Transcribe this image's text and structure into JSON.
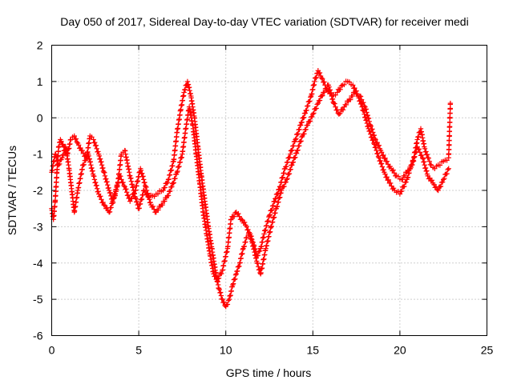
{
  "chart_data": {
    "type": "scatter",
    "title": "Day 050 of 2017, Sidereal Day-to-day VTEC variation (SDTVAR) for receiver medi",
    "xlabel": "GPS time / hours",
    "ylabel": "SDTVAR / TECUs",
    "xlim": [
      0,
      25
    ],
    "ylim": [
      -6,
      2
    ],
    "xticks": [
      "0",
      "5",
      "10",
      "15",
      "20",
      "25"
    ],
    "yticks": [
      "-6",
      "-5",
      "-4",
      "-3",
      "-2",
      "-1",
      "0",
      "1",
      "2"
    ],
    "grid": true,
    "marker": "+",
    "marker_color": "#ff0000",
    "series": [
      {
        "values": [
          [
            0.0,
            -2.5
          ],
          [
            0.1,
            -2.8
          ],
          [
            0.2,
            -2.3
          ],
          [
            0.3,
            -1.5
          ],
          [
            0.4,
            -0.8
          ],
          [
            0.5,
            -0.6
          ],
          [
            0.7,
            -0.8
          ],
          [
            0.9,
            -1.0
          ],
          [
            1.1,
            -0.6
          ],
          [
            1.3,
            -0.5
          ],
          [
            1.5,
            -0.7
          ],
          [
            1.7,
            -0.9
          ],
          [
            2.0,
            -1.1
          ],
          [
            2.2,
            -0.5
          ],
          [
            2.4,
            -0.6
          ],
          [
            2.7,
            -1.0
          ],
          [
            3.0,
            -1.5
          ],
          [
            3.3,
            -2.0
          ],
          [
            3.5,
            -2.3
          ],
          [
            3.8,
            -1.8
          ],
          [
            4.0,
            -1.0
          ],
          [
            4.2,
            -0.9
          ],
          [
            4.5,
            -1.6
          ],
          [
            4.8,
            -2.2
          ],
          [
            5.0,
            -2.5
          ],
          [
            5.3,
            -2.0
          ],
          [
            5.6,
            -2.2
          ],
          [
            6.0,
            -2.1
          ],
          [
            6.4,
            -2.0
          ],
          [
            6.7,
            -1.7
          ],
          [
            7.0,
            -1.2
          ],
          [
            7.2,
            -0.4
          ],
          [
            7.4,
            0.2
          ],
          [
            7.6,
            0.7
          ],
          [
            7.8,
            1.0
          ],
          [
            8.0,
            0.6
          ],
          [
            8.2,
            0.0
          ],
          [
            8.4,
            -0.8
          ],
          [
            8.6,
            -1.6
          ],
          [
            8.8,
            -2.3
          ],
          [
            9.0,
            -3.0
          ],
          [
            9.2,
            -3.6
          ],
          [
            9.4,
            -4.2
          ],
          [
            9.6,
            -4.7
          ],
          [
            9.8,
            -5.0
          ],
          [
            10.0,
            -5.2
          ],
          [
            10.2,
            -5.0
          ],
          [
            10.4,
            -4.6
          ],
          [
            10.6,
            -4.3
          ],
          [
            10.8,
            -4.0
          ],
          [
            11.0,
            -3.6
          ],
          [
            11.2,
            -3.3
          ],
          [
            11.4,
            -3.2
          ],
          [
            11.6,
            -3.5
          ],
          [
            11.8,
            -3.8
          ],
          [
            12.0,
            -3.6
          ],
          [
            12.2,
            -3.2
          ],
          [
            12.5,
            -2.7
          ],
          [
            12.8,
            -2.3
          ],
          [
            13.1,
            -1.9
          ],
          [
            13.4,
            -1.4
          ],
          [
            13.7,
            -1.0
          ],
          [
            14.0,
            -0.6
          ],
          [
            14.3,
            -0.2
          ],
          [
            14.6,
            0.2
          ],
          [
            14.9,
            0.6
          ],
          [
            15.1,
            1.0
          ],
          [
            15.3,
            1.3
          ],
          [
            15.5,
            1.1
          ],
          [
            15.8,
            0.8
          ],
          [
            16.1,
            0.6
          ],
          [
            16.4,
            0.7
          ],
          [
            16.7,
            0.9
          ],
          [
            17.0,
            1.0
          ],
          [
            17.3,
            0.9
          ],
          [
            17.6,
            0.6
          ],
          [
            17.9,
            0.2
          ],
          [
            18.2,
            -0.3
          ],
          [
            18.5,
            -0.7
          ],
          [
            18.8,
            -1.1
          ],
          [
            19.1,
            -1.5
          ],
          [
            19.4,
            -1.8
          ],
          [
            19.7,
            -2.0
          ],
          [
            20.0,
            -2.1
          ],
          [
            20.2,
            -1.9
          ],
          [
            20.4,
            -1.7
          ],
          [
            20.6,
            -1.4
          ],
          [
            20.8,
            -1.1
          ],
          [
            21.0,
            -0.6
          ],
          [
            21.2,
            -0.3
          ],
          [
            21.4,
            -0.8
          ],
          [
            21.6,
            -1.1
          ],
          [
            21.8,
            -1.3
          ],
          [
            22.0,
            -1.4
          ],
          [
            22.2,
            -1.3
          ],
          [
            22.5,
            -1.2
          ],
          [
            22.8,
            -1.1
          ],
          [
            22.9,
            0.4
          ]
        ]
      },
      {
        "values": [
          [
            0.0,
            -1.5
          ],
          [
            0.2,
            -1.0
          ],
          [
            0.4,
            -1.3
          ],
          [
            0.6,
            -1.1
          ],
          [
            0.8,
            -0.8
          ],
          [
            1.0,
            -1.4
          ],
          [
            1.2,
            -2.2
          ],
          [
            1.3,
            -2.6
          ],
          [
            1.5,
            -2.0
          ],
          [
            1.8,
            -1.3
          ],
          [
            2.1,
            -1.0
          ],
          [
            2.4,
            -1.6
          ],
          [
            2.7,
            -2.1
          ],
          [
            3.0,
            -2.4
          ],
          [
            3.3,
            -2.6
          ],
          [
            3.6,
            -2.2
          ],
          [
            3.9,
            -1.6
          ],
          [
            4.2,
            -1.9
          ],
          [
            4.5,
            -2.3
          ],
          [
            4.8,
            -2.0
          ],
          [
            5.1,
            -1.4
          ],
          [
            5.4,
            -1.9
          ],
          [
            5.7,
            -2.4
          ],
          [
            6.0,
            -2.6
          ],
          [
            6.3,
            -2.4
          ],
          [
            6.6,
            -2.2
          ],
          [
            6.9,
            -1.9
          ],
          [
            7.2,
            -1.5
          ],
          [
            7.5,
            -1.0
          ],
          [
            7.7,
            -0.3
          ],
          [
            7.9,
            0.3
          ],
          [
            8.1,
            -0.2
          ],
          [
            8.3,
            -1.0
          ],
          [
            8.5,
            -1.8
          ],
          [
            8.7,
            -2.6
          ],
          [
            8.9,
            -3.2
          ],
          [
            9.1,
            -3.8
          ],
          [
            9.3,
            -4.3
          ],
          [
            9.5,
            -4.5
          ],
          [
            9.8,
            -4.2
          ],
          [
            10.1,
            -3.6
          ],
          [
            10.3,
            -2.8
          ],
          [
            10.6,
            -2.6
          ],
          [
            10.9,
            -2.8
          ],
          [
            11.2,
            -3.0
          ],
          [
            11.5,
            -3.4
          ],
          [
            11.8,
            -4.0
          ],
          [
            12.0,
            -4.3
          ],
          [
            12.3,
            -3.6
          ],
          [
            12.6,
            -3.0
          ],
          [
            12.9,
            -2.5
          ],
          [
            13.2,
            -2.0
          ],
          [
            13.5,
            -1.7
          ],
          [
            13.8,
            -1.3
          ],
          [
            14.1,
            -0.9
          ],
          [
            14.4,
            -0.5
          ],
          [
            14.7,
            -0.2
          ],
          [
            15.0,
            0.1
          ],
          [
            15.3,
            0.4
          ],
          [
            15.6,
            0.7
          ],
          [
            15.9,
            0.9
          ],
          [
            16.2,
            0.4
          ],
          [
            16.5,
            0.1
          ],
          [
            16.8,
            0.3
          ],
          [
            17.1,
            0.5
          ],
          [
            17.4,
            0.7
          ],
          [
            17.7,
            0.6
          ],
          [
            18.0,
            0.3
          ],
          [
            18.3,
            -0.2
          ],
          [
            18.6,
            -0.6
          ],
          [
            18.9,
            -0.9
          ],
          [
            19.2,
            -1.2
          ],
          [
            19.5,
            -1.4
          ],
          [
            19.8,
            -1.6
          ],
          [
            20.1,
            -1.7
          ],
          [
            20.4,
            -1.5
          ],
          [
            20.7,
            -1.3
          ],
          [
            21.0,
            -0.8
          ],
          [
            21.3,
            -1.1
          ],
          [
            21.6,
            -1.6
          ],
          [
            21.9,
            -1.8
          ],
          [
            22.2,
            -2.0
          ],
          [
            22.5,
            -1.7
          ],
          [
            22.8,
            -1.4
          ]
        ]
      }
    ]
  }
}
